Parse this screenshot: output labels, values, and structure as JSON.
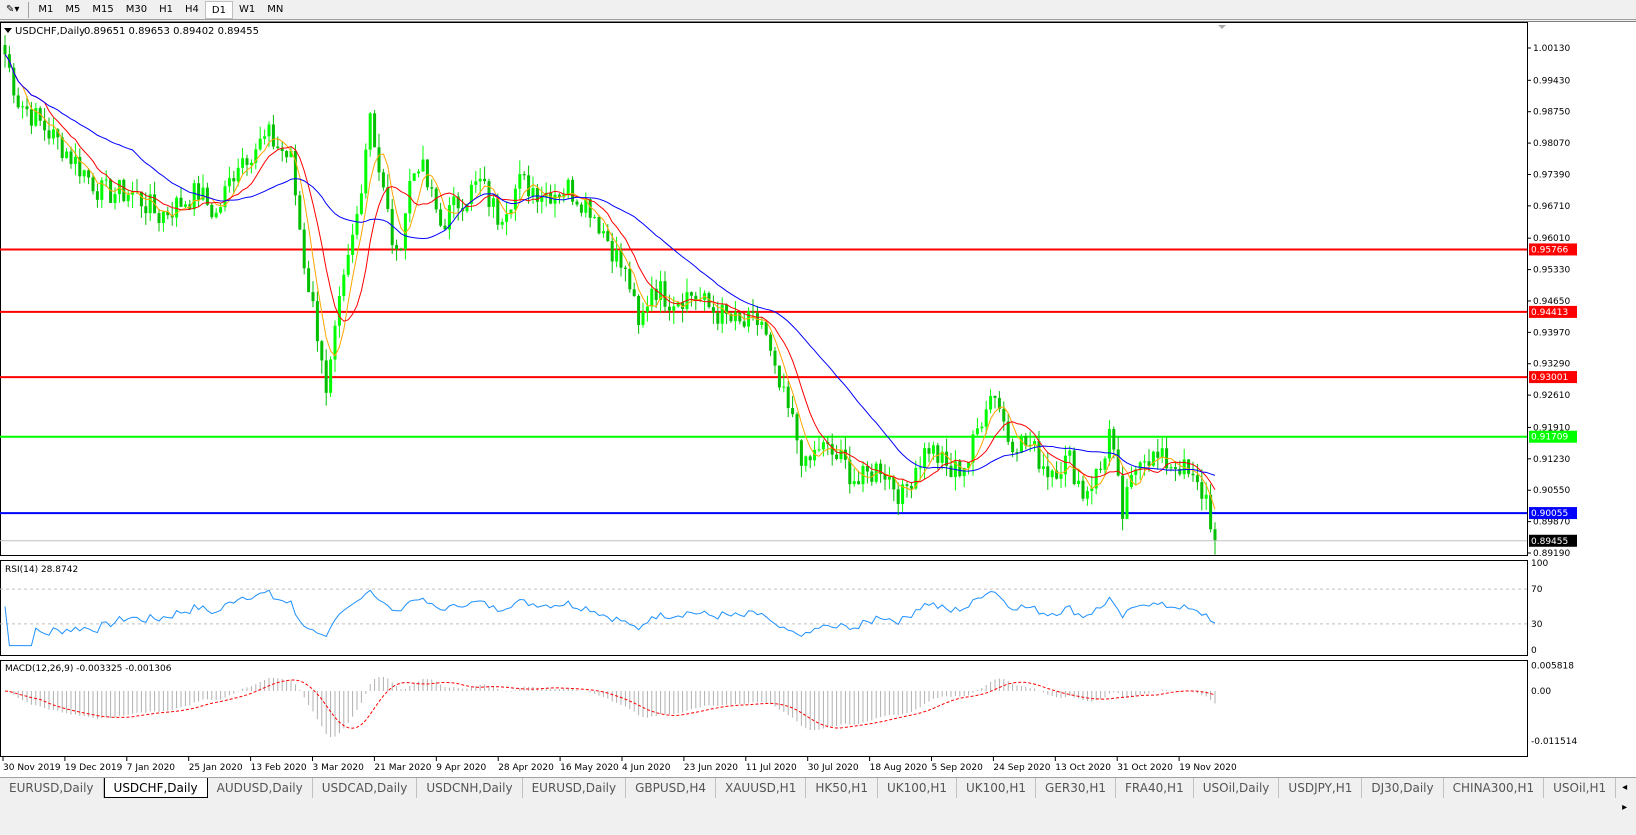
{
  "toolbar": {
    "timeframes": [
      "M1",
      "M5",
      "M15",
      "M30",
      "H1",
      "H4",
      "D1",
      "W1",
      "MN"
    ],
    "active": "D1"
  },
  "header": {
    "symbol": "USDCHF,Daily",
    "ohlc": "0.89651 0.89653 0.89402 0.89455"
  },
  "price_axis": {
    "ticks": [
      "1.00130",
      "0.99430",
      "0.98750",
      "0.98070",
      "0.97390",
      "0.96710",
      "0.96010",
      "0.95330",
      "0.94650",
      "0.93970",
      "0.93290",
      "0.92610",
      "0.91910",
      "0.91230",
      "0.90550",
      "0.89870",
      "0.89190"
    ],
    "lines": [
      {
        "value": "0.95766",
        "color": "#ff0000"
      },
      {
        "value": "0.94413",
        "color": "#ff0000"
      },
      {
        "value": "0.93001",
        "color": "#ff0000"
      },
      {
        "value": "0.91709",
        "color": "#00ff00"
      },
      {
        "value": "0.90055",
        "color": "#0000ff"
      }
    ],
    "current": "0.89455"
  },
  "rsi": {
    "label": "RSI(14) 28.8742",
    "ticks": [
      "100",
      "70",
      "30",
      "0"
    ],
    "color": "#1e90ff"
  },
  "macd": {
    "label": "MACD(12,26,9) -0.003325 -0.001306",
    "ticks": [
      "0.005818",
      "0.00",
      "-0.011514"
    ]
  },
  "time_axis": [
    "30 Nov 2019",
    "19 Dec 2019",
    "7 Jan 2020",
    "25 Jan 2020",
    "13 Feb 2020",
    "3 Mar 2020",
    "21 Mar 2020",
    "9 Apr 2020",
    "28 Apr 2020",
    "16 May 2020",
    "4 Jun 2020",
    "23 Jun 2020",
    "11 Jul 2020",
    "30 Jul 2020",
    "18 Aug 2020",
    "5 Sep 2020",
    "24 Sep 2020",
    "13 Oct 2020",
    "31 Oct 2020",
    "19 Nov 2020"
  ],
  "tabs": [
    "EURUSD,Daily",
    "USDCHF,Daily",
    "AUDUSD,Daily",
    "USDCAD,Daily",
    "USDCNH,Daily",
    "EURUSD,Daily",
    "GBPUSD,H4",
    "XAUUSD,H1",
    "HK50,H1",
    "UK100,H1",
    "UK100,H1",
    "GER30,H1",
    "FRA40,H1",
    "USOil,Daily",
    "USDJPY,H1",
    "DJ30,Daily",
    "CHINA300,H1",
    "USOil,H1"
  ],
  "active_tab": 1,
  "colors": {
    "bull": "#00ff00",
    "bear": "#00c000",
    "ma_fast": "#ffa500",
    "ma_mid": "#ff0000",
    "ma_slow": "#0000ff"
  },
  "chart_data": {
    "type": "candlestick",
    "close_path": [
      [
        0,
        1.0
      ],
      [
        3,
        0.99
      ],
      [
        13,
        0.98
      ],
      [
        22,
        0.97
      ],
      [
        29,
        0.97
      ],
      [
        35,
        0.965
      ],
      [
        44,
        0.97
      ],
      [
        48,
        0.965
      ],
      [
        53,
        0.977
      ],
      [
        60,
        0.982
      ],
      [
        65,
        0.977
      ],
      [
        68,
        0.955
      ],
      [
        72,
        0.935
      ],
      [
        73,
        0.925
      ],
      [
        76,
        0.945
      ],
      [
        80,
        0.965
      ],
      [
        83,
        0.988
      ],
      [
        85,
        0.975
      ],
      [
        89,
        0.955
      ],
      [
        92,
        0.972
      ],
      [
        94,
        0.977
      ],
      [
        99,
        0.963
      ],
      [
        103,
        0.968
      ],
      [
        108,
        0.972
      ],
      [
        112,
        0.965
      ],
      [
        117,
        0.972
      ],
      [
        123,
        0.97
      ],
      [
        128,
        0.971
      ],
      [
        133,
        0.967
      ],
      [
        137,
        0.96
      ],
      [
        142,
        0.95
      ],
      [
        144,
        0.94
      ],
      [
        147,
        0.95
      ],
      [
        151,
        0.947
      ],
      [
        156,
        0.948
      ],
      [
        160,
        0.945
      ],
      [
        167,
        0.941
      ],
      [
        172,
        0.942
      ],
      [
        175,
        0.93
      ],
      [
        179,
        0.92
      ],
      [
        182,
        0.91
      ],
      [
        185,
        0.915
      ],
      [
        190,
        0.912
      ],
      [
        194,
        0.907
      ],
      [
        199,
        0.911
      ],
      [
        204,
        0.904
      ],
      [
        207,
        0.911
      ],
      [
        210,
        0.915
      ],
      [
        215,
        0.909
      ],
      [
        219,
        0.912
      ],
      [
        223,
        0.925
      ],
      [
        225,
        0.927
      ],
      [
        228,
        0.917
      ],
      [
        233,
        0.915
      ],
      [
        237,
        0.91
      ],
      [
        242,
        0.912
      ],
      [
        245,
        0.905
      ],
      [
        249,
        0.91
      ],
      [
        251,
        0.918
      ],
      [
        254,
        0.9
      ],
      [
        258,
        0.914
      ],
      [
        262,
        0.912
      ],
      [
        267,
        0.911
      ],
      [
        270,
        0.907
      ],
      [
        273,
        0.904
      ],
      [
        275,
        0.8945
      ]
    ]
  }
}
